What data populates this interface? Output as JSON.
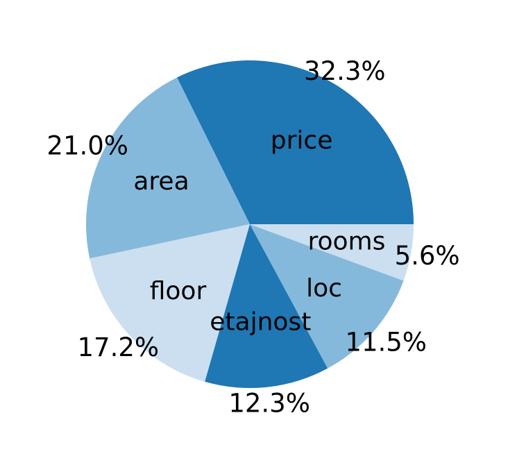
{
  "chart_data": {
    "type": "pie",
    "title": "",
    "categories": [
      "price",
      "area",
      "floor",
      "etajnost",
      "loc",
      "rooms"
    ],
    "values": [
      32.3,
      21.0,
      17.2,
      12.3,
      11.5,
      5.6
    ],
    "percent_labels": [
      "32.3%",
      "21.0%",
      "17.2%",
      "12.3%",
      "11.5%",
      "5.6%"
    ],
    "colors": [
      "#1f77b4",
      "#85b9dc",
      "#cbdff1",
      "#1f77b4",
      "#85b9dc",
      "#cbdff1"
    ],
    "start_angle_deg": 0,
    "direction": "counterclockwise",
    "legend": "none"
  }
}
